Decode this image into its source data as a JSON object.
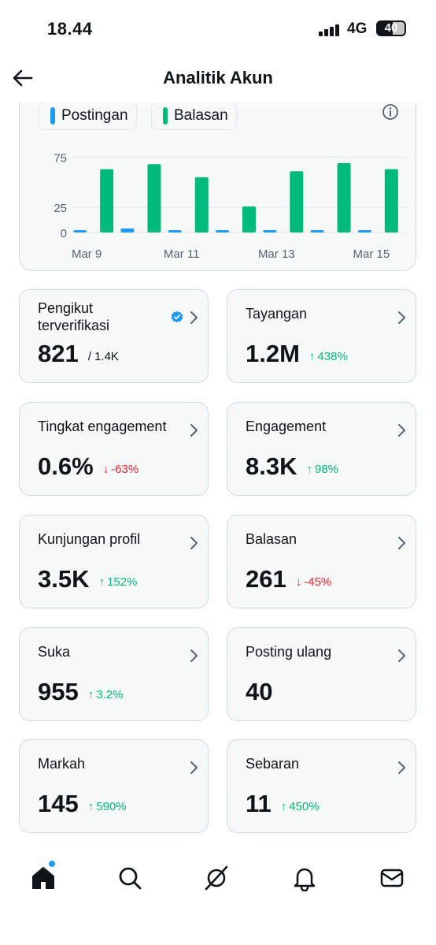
{
  "status_bar": {
    "time": "18.44",
    "network": "4G",
    "battery": "40"
  },
  "header": {
    "title": "Analitik Akun",
    "back_icon": "arrow-left-icon"
  },
  "chart_data": {
    "type": "bar",
    "categories": [
      "Mar 9",
      "Mar 10",
      "Mar 11",
      "Mar 12",
      "Mar 13",
      "Mar 14",
      "Mar 15"
    ],
    "x_tick_labels": [
      "Mar 9",
      "Mar 11",
      "Mar 13",
      "Mar 15"
    ],
    "series": [
      {
        "name": "Postingan",
        "color": "#1d9bf0",
        "values": [
          2,
          4,
          1,
          0.5,
          1,
          2,
          1
        ]
      },
      {
        "name": "Balasan",
        "color": "#00ba7c",
        "values": [
          63,
          68,
          55,
          26,
          61,
          69,
          63
        ]
      }
    ],
    "y_tick_labels": [
      "75",
      "25",
      "0"
    ],
    "ylim": [
      0,
      80
    ],
    "grid": true,
    "legend": "top-left"
  },
  "colors": {
    "accent": "#1d9bf0",
    "positive": "#00ba7c",
    "negative": "#f4212e"
  },
  "cards": [
    {
      "title": "Pengikut terverifikasi",
      "value": "821",
      "sub": "/ 1.4K",
      "verified": true
    },
    {
      "title": "Tayangan",
      "value": "1.2M",
      "change": "438%",
      "dir": "up"
    },
    {
      "title": "Tingkat engagement",
      "value": "0.6%",
      "change": "-63%",
      "dir": "down"
    },
    {
      "title": "Engagement",
      "value": "8.3K",
      "change": "98%",
      "dir": "up"
    },
    {
      "title": "Kunjungan profil",
      "value": "3.5K",
      "change": "152%",
      "dir": "up"
    },
    {
      "title": "Balasan",
      "value": "261",
      "change": "-45%",
      "dir": "down"
    },
    {
      "title": "Suka",
      "value": "955",
      "change": "3.2%",
      "dir": "up"
    },
    {
      "title": "Posting ulang",
      "value": "40"
    },
    {
      "title": "Markah",
      "value": "145",
      "change": "590%",
      "dir": "up"
    },
    {
      "title": "Sebaran",
      "value": "11",
      "change": "450%",
      "dir": "up"
    }
  ],
  "arrows": {
    "up": "↑",
    "down": "↓"
  },
  "nav": {
    "items": [
      "home-icon",
      "search-icon",
      "grok-icon",
      "notifications-icon",
      "messages-icon"
    ]
  }
}
